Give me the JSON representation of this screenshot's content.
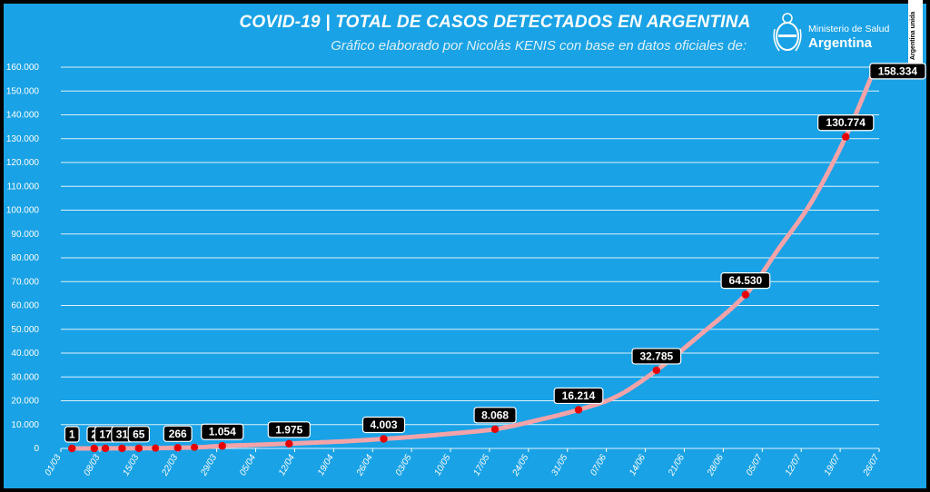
{
  "header": {
    "title": "COVID-19  |  TOTAL DE CASOS DETECTADOS EN ARGENTINA",
    "subtitle": "Gráfico elaborado por Nicolás KENIS con base en datos oficiales de:",
    "ministry_line1": "Ministerio de Salud",
    "ministry_line2": "Argentina",
    "badge_text": "Argentina unida"
  },
  "colors": {
    "background": "#1aa2e6",
    "grid": "#ffffff",
    "line": "#f4a3a8",
    "marker": "#e60000",
    "label_bg": "#000000",
    "label_text": "#ffffff"
  },
  "chart_data": {
    "type": "line",
    "x_axis": "date",
    "xlim": [
      "2020-03-01",
      "2020-07-26"
    ],
    "ylim": [
      0,
      160000
    ],
    "grid": true,
    "y_ticks": [
      "0",
      "10.000",
      "20.000",
      "30.000",
      "40.000",
      "50.000",
      "60.000",
      "70.000",
      "80.000",
      "90.000",
      "100.000",
      "110.000",
      "120.000",
      "130.000",
      "140.000",
      "150.000",
      "160.000"
    ],
    "x_ticks": [
      {
        "date": "2020-03-01",
        "label": "01/03"
      },
      {
        "date": "2020-03-08",
        "label": "08/03"
      },
      {
        "date": "2020-03-15",
        "label": "15/03"
      },
      {
        "date": "2020-03-22",
        "label": "22/03"
      },
      {
        "date": "2020-03-29",
        "label": "29/03"
      },
      {
        "date": "2020-04-05",
        "label": "05/04"
      },
      {
        "date": "2020-04-12",
        "label": "12/04"
      },
      {
        "date": "2020-04-19",
        "label": "19/04"
      },
      {
        "date": "2020-04-26",
        "label": "26/04"
      },
      {
        "date": "2020-05-03",
        "label": "03/05"
      },
      {
        "date": "2020-05-10",
        "label": "10/05"
      },
      {
        "date": "2020-05-17",
        "label": "17/05"
      },
      {
        "date": "2020-05-24",
        "label": "24/05"
      },
      {
        "date": "2020-05-31",
        "label": "31/05"
      },
      {
        "date": "2020-06-07",
        "label": "07/06"
      },
      {
        "date": "2020-06-14",
        "label": "14/06"
      },
      {
        "date": "2020-06-21",
        "label": "21/06"
      },
      {
        "date": "2020-06-28",
        "label": "28/06"
      },
      {
        "date": "2020-07-05",
        "label": "05/07"
      },
      {
        "date": "2020-07-12",
        "label": "12/07"
      },
      {
        "date": "2020-07-19",
        "label": "19/07"
      },
      {
        "date": "2020-07-26",
        "label": "26/07"
      }
    ],
    "series": [
      {
        "points": [
          {
            "x": "2020-03-03",
            "y": 1
          },
          {
            "x": "2020-03-15",
            "y": 65
          },
          {
            "x": "2020-03-22",
            "y": 266
          },
          {
            "x": "2020-03-26",
            "y": 500
          },
          {
            "x": "2020-03-30",
            "y": 1054
          },
          {
            "x": "2020-04-05",
            "y": 1500
          },
          {
            "x": "2020-04-13",
            "y": 2200
          },
          {
            "x": "2020-04-21",
            "y": 3000
          },
          {
            "x": "2020-04-28",
            "y": 4003
          },
          {
            "x": "2020-05-04",
            "y": 5000
          },
          {
            "x": "2020-05-10",
            "y": 6200
          },
          {
            "x": "2020-05-18",
            "y": 8068
          },
          {
            "x": "2020-05-25",
            "y": 11500
          },
          {
            "x": "2020-06-02",
            "y": 16214
          },
          {
            "x": "2020-06-09",
            "y": 22000
          },
          {
            "x": "2020-06-16",
            "y": 32785
          },
          {
            "x": "2020-06-23",
            "y": 46000
          },
          {
            "x": "2020-07-02",
            "y": 64530
          },
          {
            "x": "2020-07-08",
            "y": 84000
          },
          {
            "x": "2020-07-14",
            "y": 104000
          },
          {
            "x": "2020-07-20",
            "y": 130774
          },
          {
            "x": "2020-07-25",
            "y": 158334
          }
        ]
      }
    ],
    "data_labels": [
      {
        "x": "2020-03-03",
        "y": 1,
        "label": "1"
      },
      {
        "x": "2020-03-07",
        "y": 2,
        "label": "2"
      },
      {
        "x": "2020-03-09",
        "y": 17,
        "label": "17"
      },
      {
        "x": "2020-03-12",
        "y": 31,
        "label": "31"
      },
      {
        "x": "2020-03-15",
        "y": 65,
        "label": "65"
      },
      {
        "x": "2020-03-22",
        "y": 266,
        "label": "266"
      },
      {
        "x": "2020-03-30",
        "y": 1054,
        "label": "1.054"
      },
      {
        "x": "2020-04-11",
        "y": 1975,
        "label": "1.975"
      },
      {
        "x": "2020-04-28",
        "y": 4003,
        "label": "4.003"
      },
      {
        "x": "2020-05-18",
        "y": 8068,
        "label": "8.068"
      },
      {
        "x": "2020-06-02",
        "y": 16214,
        "label": "16.214"
      },
      {
        "x": "2020-06-16",
        "y": 32785,
        "label": "32.785"
      },
      {
        "x": "2020-07-02",
        "y": 64530,
        "label": "64.530"
      },
      {
        "x": "2020-07-20",
        "y": 130774,
        "label": "130.774"
      },
      {
        "x": "2020-07-25",
        "y": 158334,
        "label": "158.334"
      }
    ],
    "extra_markers": [
      {
        "x": "2020-03-18",
        "y": 120
      },
      {
        "x": "2020-03-25",
        "y": 500
      }
    ]
  }
}
